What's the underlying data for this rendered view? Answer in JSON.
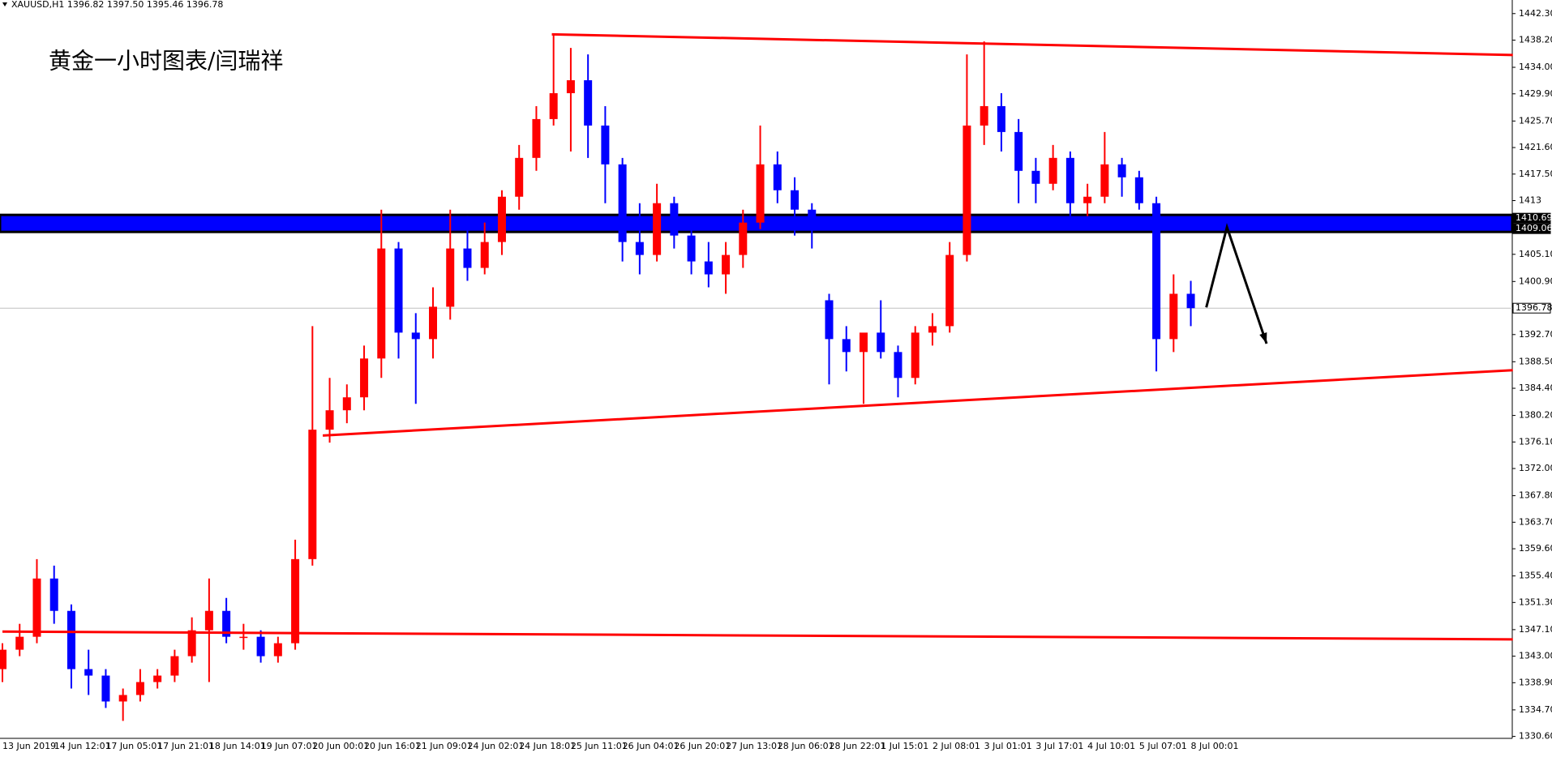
{
  "chart_data": {
    "type": "candlestick",
    "header": "XAUUSD,H1  1396.82 1397.50 1395.46 1396.78",
    "title": "黄金一小时图表/闫瑞祥",
    "categories": [
      "13 Jun 2019",
      null,
      null,
      "14 Jun 12:01",
      null,
      null,
      "17 Jun 05:01",
      null,
      null,
      "17 Jun 21:01",
      null,
      null,
      "18 Jun 14:01",
      null,
      null,
      "19 Jun 07:01",
      null,
      null,
      "20 Jun 00:01",
      null,
      null,
      "20 Jun 16:01",
      null,
      null,
      "21 Jun 09:01",
      null,
      null,
      "24 Jun 02:01",
      null,
      null,
      "24 Jun 18:01",
      null,
      null,
      "25 Jun 11:01",
      null,
      null,
      "26 Jun 04:01",
      null,
      null,
      "26 Jun 20:01",
      null,
      null,
      "27 Jun 13:01",
      null,
      null,
      "28 Jun 06:01",
      null,
      null,
      "28 Jun 22:01",
      null,
      null,
      "1 Jul 15:01",
      null,
      null,
      "2 Jul 08:01",
      null,
      null,
      "3 Jul 01:01",
      null,
      null,
      "3 Jul 17:01",
      null,
      null,
      "4 Jul 10:01",
      null,
      null,
      "5 Jul 07:01",
      null,
      null,
      "8 Jul 00:01"
    ],
    "ohlc": [
      [
        1341,
        1345,
        1339,
        1344
      ],
      [
        1344,
        1348,
        1343,
        1346
      ],
      [
        1346,
        1358,
        1345,
        1355
      ],
      [
        1355,
        1357,
        1348,
        1350
      ],
      [
        1350,
        1351,
        1338,
        1341
      ],
      [
        1341,
        1344,
        1337,
        1340
      ],
      [
        1340,
        1341,
        1335,
        1336
      ],
      [
        1336,
        1338,
        1333,
        1337
      ],
      [
        1337,
        1341,
        1336,
        1339
      ],
      [
        1339,
        1341,
        1338,
        1340
      ],
      [
        1340,
        1344,
        1339,
        1343
      ],
      [
        1343,
        1349,
        1342,
        1347
      ],
      [
        1347,
        1355,
        1339,
        1350
      ],
      [
        1350,
        1352,
        1345,
        1346
      ],
      [
        1346,
        1348,
        1344,
        1346
      ],
      [
        1346,
        1347,
        1342,
        1343
      ],
      [
        1343,
        1346,
        1342,
        1345
      ],
      [
        1345,
        1361,
        1344,
        1358
      ],
      [
        1358,
        1394,
        1357,
        1378
      ],
      [
        1378,
        1386,
        1376,
        1381
      ],
      [
        1381,
        1385,
        1379,
        1383
      ],
      [
        1383,
        1391,
        1381,
        1389
      ],
      [
        1389,
        1412,
        1386,
        1406
      ],
      [
        1406,
        1407,
        1389,
        1393
      ],
      [
        1393,
        1396,
        1382,
        1392
      ],
      [
        1392,
        1400,
        1389,
        1397
      ],
      [
        1397,
        1412,
        1395,
        1406
      ],
      [
        1406,
        1411,
        1401,
        1403
      ],
      [
        1403,
        1410,
        1402,
        1407
      ],
      [
        1407,
        1415,
        1405,
        1414
      ],
      [
        1414,
        1422,
        1412,
        1420
      ],
      [
        1420,
        1428,
        1418,
        1426
      ],
      [
        1426,
        1439,
        1425,
        1430
      ],
      [
        1430,
        1437,
        1421,
        1432
      ],
      [
        1432,
        1436,
        1420,
        1425
      ],
      [
        1425,
        1428,
        1413,
        1419
      ],
      [
        1419,
        1420,
        1404,
        1407
      ],
      [
        1407,
        1413,
        1402,
        1405
      ],
      [
        1405,
        1416,
        1404,
        1413
      ],
      [
        1413,
        1414,
        1406,
        1408
      ],
      [
        1408,
        1410,
        1402,
        1404
      ],
      [
        1404,
        1407,
        1400,
        1402
      ],
      [
        1402,
        1407,
        1399,
        1405
      ],
      [
        1405,
        1412,
        1403,
        1410
      ],
      [
        1410,
        1425,
        1409,
        1419
      ],
      [
        1419,
        1421,
        1413,
        1415
      ],
      [
        1415,
        1417,
        1408,
        1412
      ],
      [
        1412,
        1413,
        1406,
        1410
      ],
      [
        1398,
        1399,
        1385,
        1392
      ],
      [
        1392,
        1394,
        1387,
        1390
      ],
      [
        1390,
        1392,
        1382,
        1393
      ],
      [
        1393,
        1398,
        1389,
        1390
      ],
      [
        1390,
        1391,
        1383,
        1386
      ],
      [
        1386,
        1394,
        1385,
        1393
      ],
      [
        1393,
        1396,
        1391,
        1394
      ],
      [
        1394,
        1407,
        1393,
        1405
      ],
      [
        1405,
        1436,
        1404,
        1425
      ],
      [
        1425,
        1438,
        1422,
        1428
      ],
      [
        1428,
        1430,
        1421,
        1424
      ],
      [
        1424,
        1426,
        1413,
        1418
      ],
      [
        1418,
        1420,
        1413,
        1416
      ],
      [
        1416,
        1422,
        1415,
        1420
      ],
      [
        1420,
        1421,
        1411,
        1413
      ],
      [
        1413,
        1416,
        1411,
        1414
      ],
      [
        1414,
        1424,
        1413,
        1419
      ],
      [
        1419,
        1420,
        1414,
        1417
      ],
      [
        1417,
        1418,
        1412,
        1413
      ],
      [
        1413,
        1414,
        1387,
        1392
      ],
      [
        1392,
        1402,
        1390,
        1399
      ],
      [
        1399,
        1401,
        1394,
        1396.78
      ]
    ],
    "up_color": "#ff0000",
    "down_color": "#0000ff",
    "ylim": [
      1330.3,
      1444.4
    ],
    "yticks": [
      {
        "value": 1330.6,
        "label": "1330.60"
      },
      {
        "value": 1334.7,
        "label": "1334.70"
      },
      {
        "value": 1338.9,
        "label": "1338.90"
      },
      {
        "value": 1343,
        "label": "1343.00"
      },
      {
        "value": 1347.1,
        "label": "1347.10"
      },
      {
        "value": 1351.3,
        "label": "1351.30"
      },
      {
        "value": 1355.4,
        "label": "1355.40"
      },
      {
        "value": 1359.6,
        "label": "1359.60"
      },
      {
        "value": 1363.7,
        "label": "1363.70"
      },
      {
        "value": 1367.8,
        "label": "1367.80"
      },
      {
        "value": 1372,
        "label": "1372.00"
      },
      {
        "value": 1376.1,
        "label": "1376.10"
      },
      {
        "value": 1380.2,
        "label": "1380.20"
      },
      {
        "value": 1384.4,
        "label": "1384.40"
      },
      {
        "value": 1388.5,
        "label": "1388.50"
      },
      {
        "value": 1392.7,
        "label": "1392.70"
      },
      {
        "value": 1400.9,
        "label": "1400.90"
      },
      {
        "value": 1405.1,
        "label": "1405.10"
      },
      {
        "value": 1413.4,
        "label": "1413"
      },
      {
        "value": 1417.5,
        "label": "1417.50"
      },
      {
        "value": 1421.6,
        "label": "1421.60"
      },
      {
        "value": 1425.7,
        "label": "1425.70"
      },
      {
        "value": 1429.9,
        "label": "1429.90"
      },
      {
        "value": 1434,
        "label": "1434.00"
      },
      {
        "value": 1438.2,
        "label": "1438.20"
      },
      {
        "value": 1442.3,
        "label": "1442.30"
      }
    ],
    "zones": [
      {
        "from": 1409.06,
        "to": 1410.69,
        "color": "#0000ff"
      }
    ],
    "price_labels": [
      1410.69,
      1409.06,
      1396.78
    ],
    "lines": [
      {
        "x": [
          31.9,
          87.7
        ],
        "y": [
          1439.1,
          1435.9
        ],
        "color": "#ff0000"
      },
      {
        "x": [
          18.6,
          87.7
        ],
        "y": [
          1377.1,
          1387.2
        ],
        "color": "#ff0000"
      },
      {
        "x": [
          0,
          87.7
        ],
        "y": [
          1346.8,
          1345.6
        ],
        "color": "#ff0000"
      },
      {
        "x": [
          69.9,
          71.1,
          73.4
        ],
        "y": [
          1396.9,
          1409.3,
          1391.3
        ],
        "color": "#000000"
      }
    ]
  }
}
